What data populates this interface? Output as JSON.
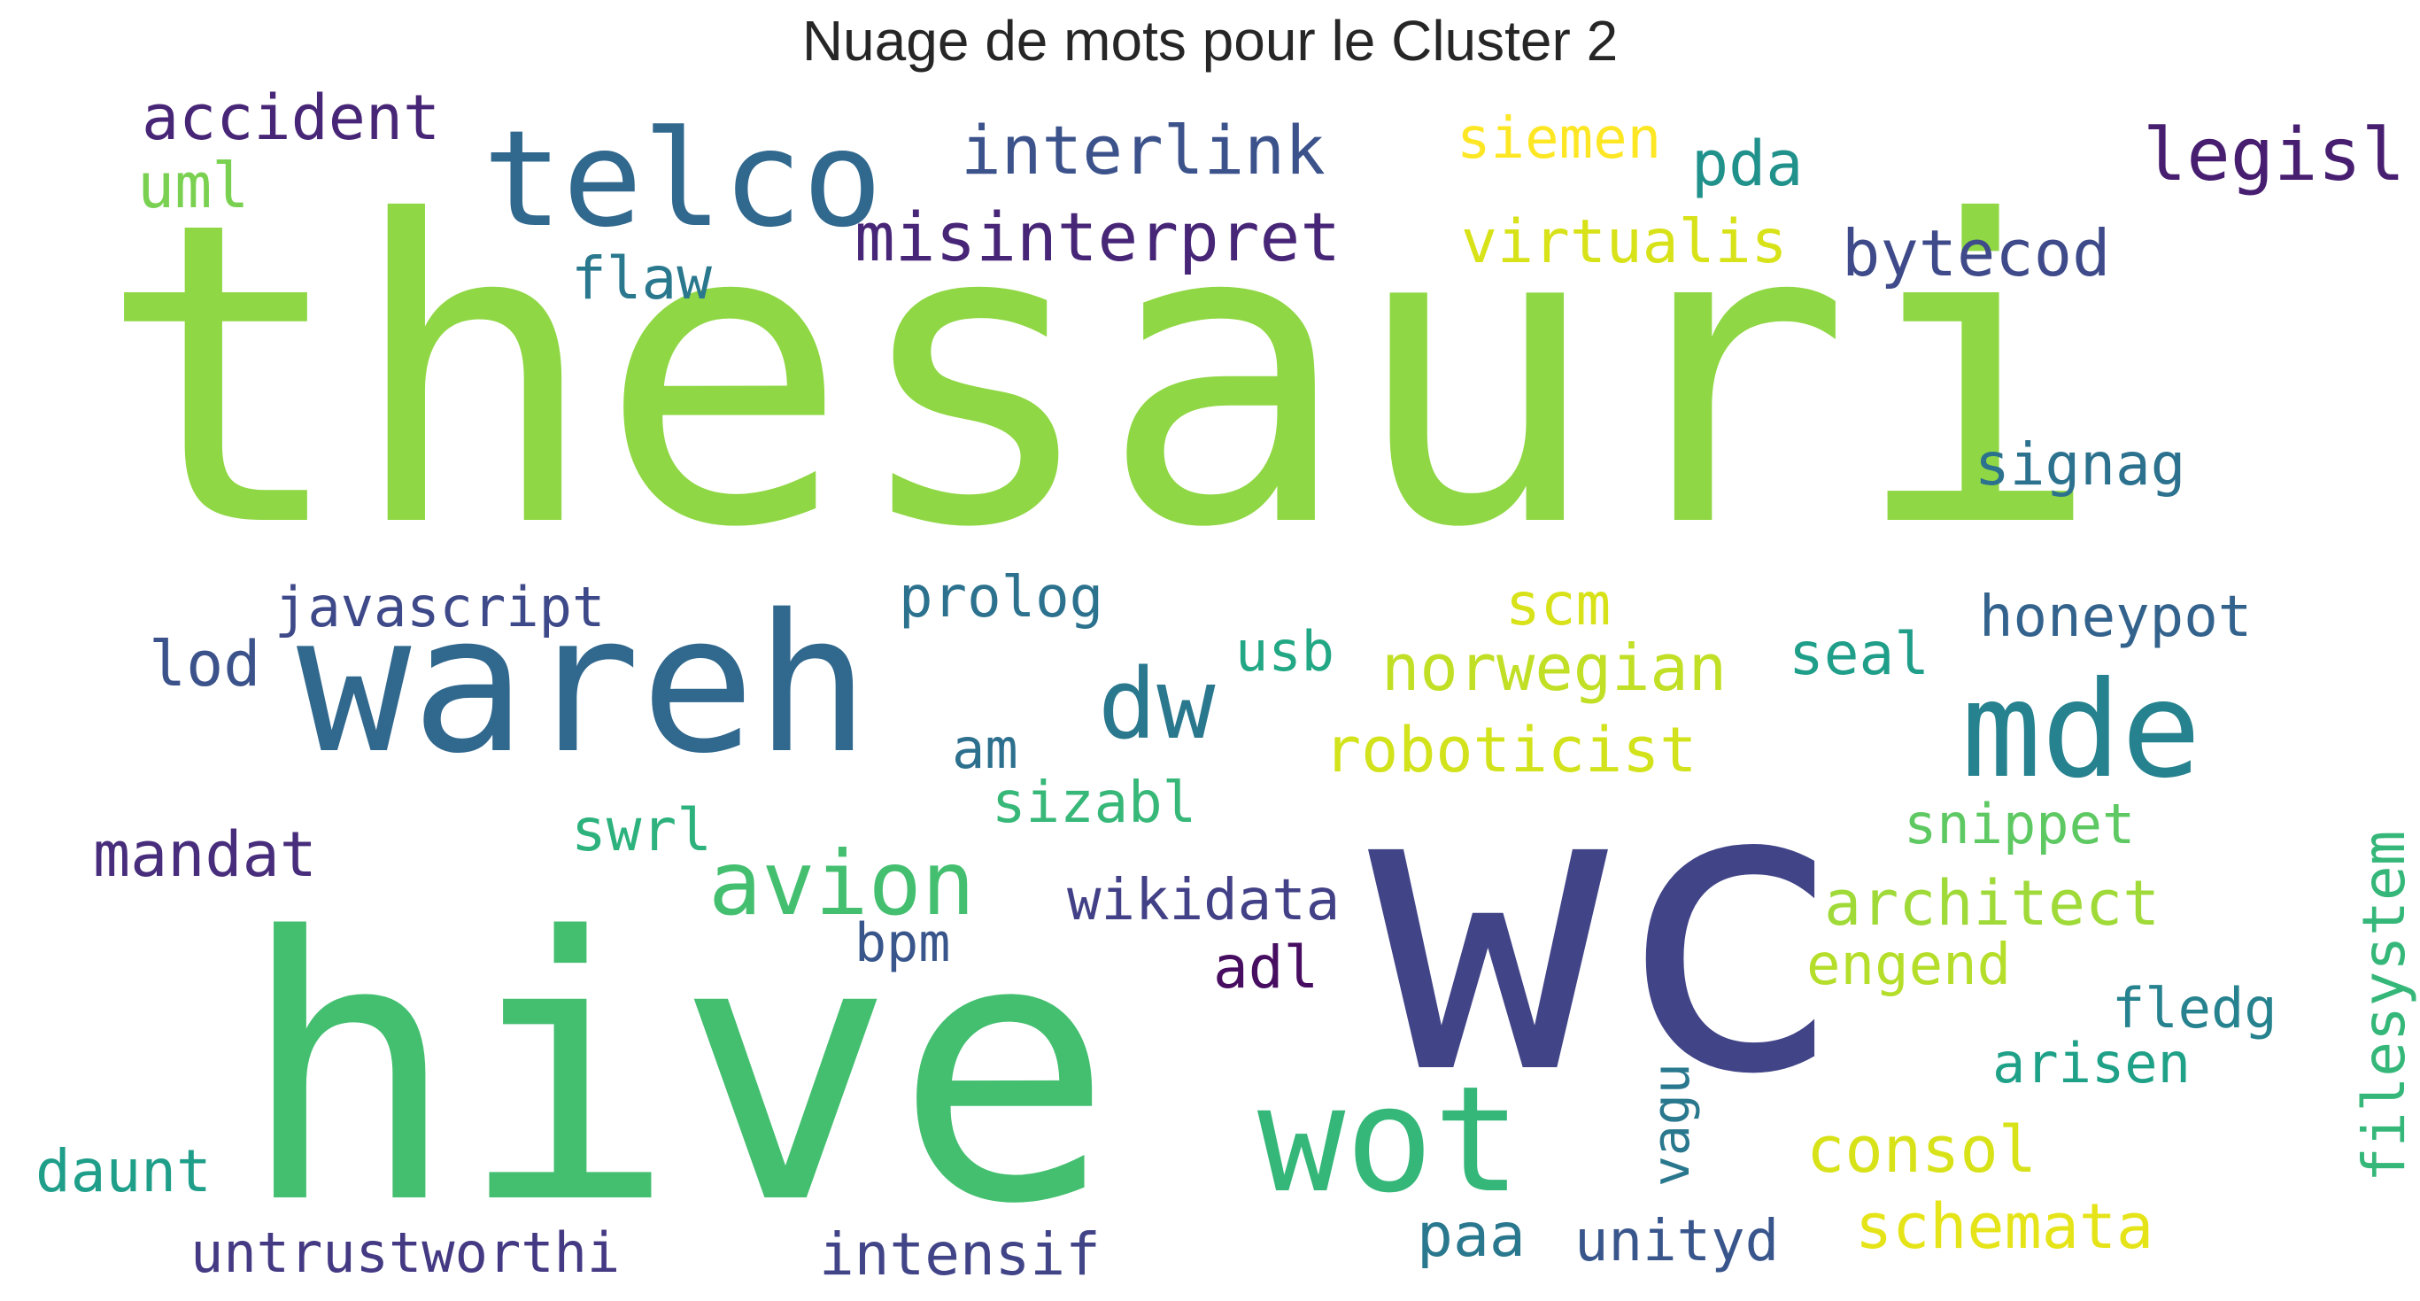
{
  "title": "Nuage de mots pour le Cluster 2",
  "words": [
    {
      "text": "thesauri",
      "color": "#8fd744",
      "rotated": false
    },
    {
      "text": "wc",
      "color": "#414487",
      "rotated": false
    },
    {
      "text": "hive",
      "color": "#44bf70",
      "rotated": false
    },
    {
      "text": "wareh",
      "color": "#31688e",
      "rotated": false
    },
    {
      "text": "telco",
      "color": "#31688e",
      "rotated": false
    },
    {
      "text": "mde",
      "color": "#26828e",
      "rotated": false
    },
    {
      "text": "wot",
      "color": "#35b779",
      "rotated": false
    },
    {
      "text": "dw",
      "color": "#2a788e",
      "rotated": false
    },
    {
      "text": "avion",
      "color": "#44bf70",
      "rotated": false
    },
    {
      "text": "accident",
      "color": "#482677",
      "rotated": false
    },
    {
      "text": "uml",
      "color": "#7ad151",
      "rotated": false
    },
    {
      "text": "interlink",
      "color": "#3b528b",
      "rotated": false
    },
    {
      "text": "misinterpret",
      "color": "#482677",
      "rotated": false
    },
    {
      "text": "flaw",
      "color": "#2a788e",
      "rotated": false
    },
    {
      "text": "siemen",
      "color": "#fde725",
      "rotated": false
    },
    {
      "text": "pda",
      "color": "#21918c",
      "rotated": false
    },
    {
      "text": "legisl",
      "color": "#481f70",
      "rotated": false
    },
    {
      "text": "virtualis",
      "color": "#d8e219",
      "rotated": false
    },
    {
      "text": "bytecod",
      "color": "#3e4a89",
      "rotated": false
    },
    {
      "text": "signag",
      "color": "#2c728e",
      "rotated": false
    },
    {
      "text": "javascript",
      "color": "#3e4989",
      "rotated": false
    },
    {
      "text": "prolog",
      "color": "#2c728e",
      "rotated": false
    },
    {
      "text": "scm",
      "color": "#d8e219",
      "rotated": false
    },
    {
      "text": "honeypot",
      "color": "#33638d",
      "rotated": false
    },
    {
      "text": "lod",
      "color": "#3b528b",
      "rotated": false
    },
    {
      "text": "usb",
      "color": "#22a884",
      "rotated": false
    },
    {
      "text": "norwegian",
      "color": "#c0df25",
      "rotated": false
    },
    {
      "text": "seal",
      "color": "#1f9e89",
      "rotated": false
    },
    {
      "text": "am",
      "color": "#2d708e",
      "rotated": false
    },
    {
      "text": "roboticist",
      "color": "#d2e21b",
      "rotated": false
    },
    {
      "text": "sizabl",
      "color": "#37b878",
      "rotated": false
    },
    {
      "text": "mandat",
      "color": "#472d7b",
      "rotated": false
    },
    {
      "text": "swrl",
      "color": "#2db27d",
      "rotated": false
    },
    {
      "text": "snippet",
      "color": "#5ec962",
      "rotated": false
    },
    {
      "text": "wikidata",
      "color": "#424086",
      "rotated": false
    },
    {
      "text": "architect",
      "color": "#a0da39",
      "rotated": false
    },
    {
      "text": "bpm",
      "color": "#39568c",
      "rotated": false
    },
    {
      "text": "adl",
      "color": "#470d60",
      "rotated": false
    },
    {
      "text": "engend",
      "color": "#b5de2b",
      "rotated": false
    },
    {
      "text": "fledg",
      "color": "#26828e",
      "rotated": false
    },
    {
      "text": "filesystem",
      "color": "#35b779",
      "rotated": true
    },
    {
      "text": "arisen",
      "color": "#1fa188",
      "rotated": false
    },
    {
      "text": "vagu",
      "color": "#2a788e",
      "rotated": true
    },
    {
      "text": "consol",
      "color": "#d8e219",
      "rotated": false
    },
    {
      "text": "daunt",
      "color": "#1f9e89",
      "rotated": false
    },
    {
      "text": "paa",
      "color": "#2a788e",
      "rotated": false
    },
    {
      "text": "unityd",
      "color": "#39568c",
      "rotated": false
    },
    {
      "text": "schemata",
      "color": "#e5e419",
      "rotated": false
    },
    {
      "text": "untrustworthi",
      "color": "#443983",
      "rotated": false
    },
    {
      "text": "intensif",
      "color": "#414487",
      "rotated": false
    }
  ]
}
